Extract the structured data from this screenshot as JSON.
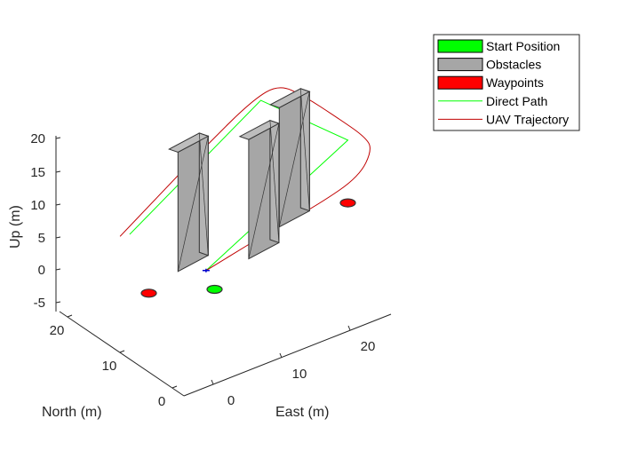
{
  "chart_data": {
    "type": "scatter",
    "title": "",
    "xlabel": "East (m)",
    "ylabel": "North (m)",
    "zlabel": "Up (m)",
    "x_ticks": [
      "0",
      "10",
      "20"
    ],
    "y_ticks": [
      "0",
      "10",
      "20"
    ],
    "z_ticks": [
      "-5",
      "0",
      "5",
      "10",
      "15",
      "20"
    ],
    "xlim": [
      -5,
      30
    ],
    "ylim": [
      -5,
      28
    ],
    "zlim": [
      -7,
      21
    ],
    "grid": false,
    "legend_position": "top-right",
    "legend": [
      {
        "label": "Start Position",
        "kind": "patch",
        "color": "#00ff00"
      },
      {
        "label": "Obstacles",
        "kind": "patch",
        "color": "#a6a6a6"
      },
      {
        "label": "Waypoints",
        "kind": "patch",
        "color": "#ff0000"
      },
      {
        "label": "Direct Path",
        "kind": "line",
        "color": "#00ff00"
      },
      {
        "label": "UAV Trajectory",
        "kind": "line",
        "color": "#c00000"
      }
    ],
    "start_position": {
      "x": 0,
      "y": 0,
      "z": 0
    },
    "waypoints": [
      {
        "x": -5,
        "y": 20,
        "z": 0
      },
      {
        "x": 25,
        "y": 10,
        "z": 0
      },
      {
        "x": 15,
        "y": 25,
        "z": 0
      }
    ],
    "obstacles": [
      {
        "x": 8,
        "y": 8,
        "w": 5,
        "d": 5,
        "h": 19
      },
      {
        "x": 16,
        "y": 18,
        "w": 5,
        "d": 5,
        "h": 19
      },
      {
        "x": 1,
        "y": 24,
        "w": 5,
        "d": 5,
        "h": 19
      }
    ],
    "direct_path": [
      {
        "x": -7,
        "y": 24,
        "z": 10
      },
      {
        "x": 15,
        "y": 25,
        "z": 20
      },
      {
        "x": 25,
        "y": 10,
        "z": 10
      },
      {
        "x": 3,
        "y": 15,
        "z": 0
      }
    ],
    "uav_trajectory": [
      {
        "x": -8,
        "y": 26,
        "z": 10
      },
      {
        "x": 0,
        "y": 26,
        "z": 14
      },
      {
        "x": 7,
        "y": 26,
        "z": 17.5
      },
      {
        "x": 14,
        "y": 26,
        "z": 20.5
      },
      {
        "x": 18,
        "y": 25,
        "z": 21
      },
      {
        "x": 21,
        "y": 21,
        "z": 18
      },
      {
        "x": 25,
        "y": 16,
        "z": 13
      },
      {
        "x": 28,
        "y": 11,
        "z": 9
      },
      {
        "x": 28.5,
        "y": 8,
        "z": 7
      },
      {
        "x": 26,
        "y": 7,
        "z": 4
      },
      {
        "x": 20,
        "y": 9,
        "z": 2.5
      },
      {
        "x": 12,
        "y": 12,
        "z": 1.5
      },
      {
        "x": 6,
        "y": 14,
        "z": 0.5
      },
      {
        "x": 3,
        "y": 15,
        "z": 0
      }
    ],
    "vehicle_marker": {
      "x": 3,
      "y": 15,
      "z": 0
    }
  },
  "colors": {
    "start": "#00ff00",
    "waypoint": "#ff0000",
    "obstacle": "#a6a6a6",
    "obstacle_edge": "#333333",
    "direct": "#00ff00",
    "trajectory": "#c00000",
    "axis": "#262626"
  }
}
